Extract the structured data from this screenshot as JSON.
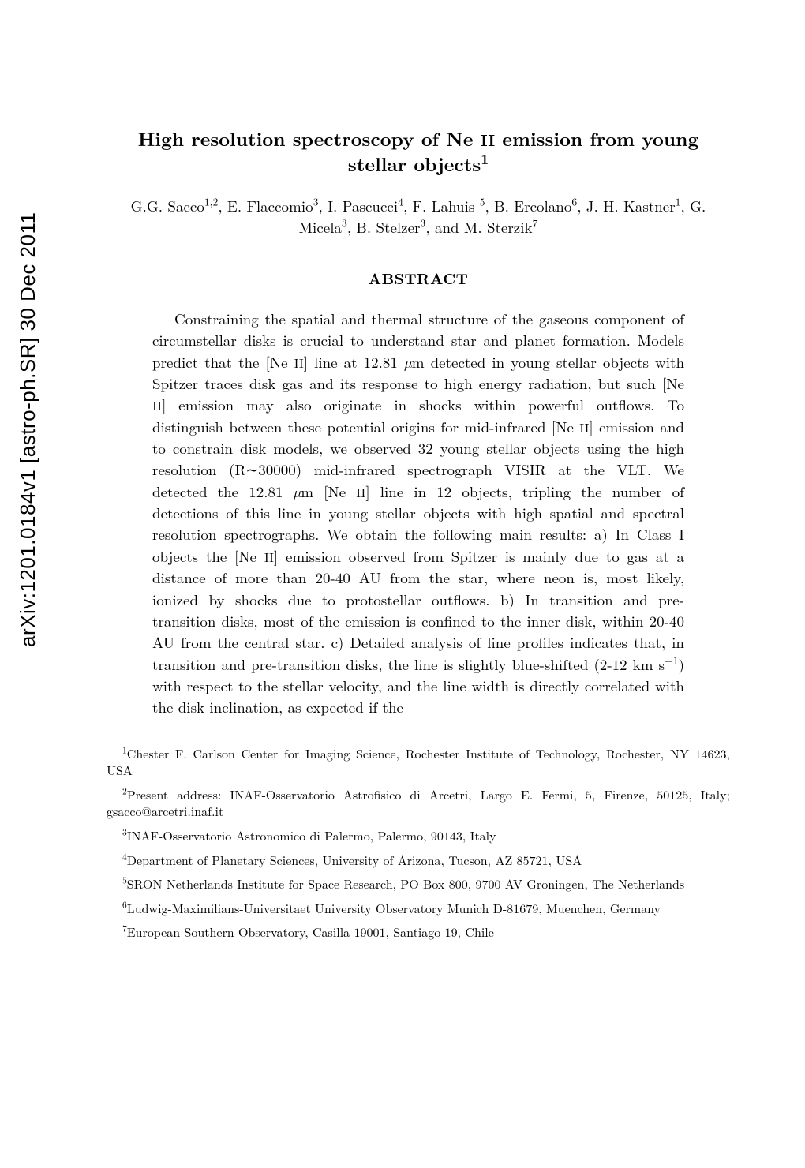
{
  "arxiv_stamp": "arXiv:1201.0184v1  [astro-ph.SR]  30 Dec 2011",
  "title": {
    "line": "High resolution spectroscopy of Ne II emission from young stellar objects",
    "sup": "1"
  },
  "authors": "G.G. Sacco^{1,2}, E. Flaccomio^{3}, I. Pascucci^{4}, F. Lahuis ^{5}, B. Ercolano^{6}, J. H. Kastner^{1}, G. Micela^{3}, B. Stelzer^{3}, and M. Sterzik^{7}",
  "abstract_heading": "ABSTRACT",
  "abstract": "Constraining the spatial and thermal structure of the gaseous component of circumstellar disks is crucial to understand star and planet formation. Models predict that the [Ne II] line at 12.81 µm detected in young stellar objects with Spitzer traces disk gas and its response to high energy radiation, but such [Ne II] emission may also originate in shocks within powerful outflows. To distinguish between these potential origins for mid-infrared [Ne II] emission and to constrain disk models, we observed 32 young stellar objects using the high resolution (R∼30000) mid-infrared spectrograph VISIR at the VLT. We detected the 12.81 µm [Ne II] line in 12 objects, tripling the number of detections of this line in young stellar objects with high spatial and spectral resolution spectrographs. We obtain the following main results: a) In Class I objects the [Ne II] emission observed from Spitzer is mainly due to gas at a distance of more than 20-40 AU from the star, where neon is, most likely, ionized by shocks due to protostellar outflows. b) In transition and pre-transition disks, most of the emission is confined to the inner disk, within 20-40 AU from the central star. c) Detailed analysis of line profiles indicates that, in transition and pre-transition disks, the line is slightly blue-shifted (2-12 km s^{−1}) with respect to the stellar velocity, and the line width is directly correlated with the disk inclination, as expected if the",
  "affiliations": [
    {
      "num": "1",
      "text": "Chester F. Carlson Center for Imaging Science, Rochester Institute of Technology, Rochester, NY 14623, USA"
    },
    {
      "num": "2",
      "text": "Present address: INAF-Osservatorio Astrofisico di Arcetri, Largo E. Fermi, 5, Firenze, 50125, Italy; gsacco@arcetri.inaf.it"
    },
    {
      "num": "3",
      "text": "INAF-Osservatorio Astronomico di Palermo, Palermo, 90143, Italy"
    },
    {
      "num": "4",
      "text": "Department of Planetary Sciences, University of Arizona, Tucson, AZ 85721, USA"
    },
    {
      "num": "5",
      "text": "SRON Netherlands Institute for Space Research, PO Box 800, 9700 AV Groningen, The Netherlands"
    },
    {
      "num": "6",
      "text": "Ludwig-Maximilians-Universitaet University Observatory Munich D-81679, Muenchen, Germany"
    },
    {
      "num": "7",
      "text": "European Southern Observatory, Casilla 19001, Santiago 19, Chile"
    }
  ],
  "style": {
    "page_bg": "#ffffff",
    "text_color": "#000000",
    "title_fontsize": 24,
    "body_fontsize": 19,
    "footnote_fontsize": 16
  }
}
